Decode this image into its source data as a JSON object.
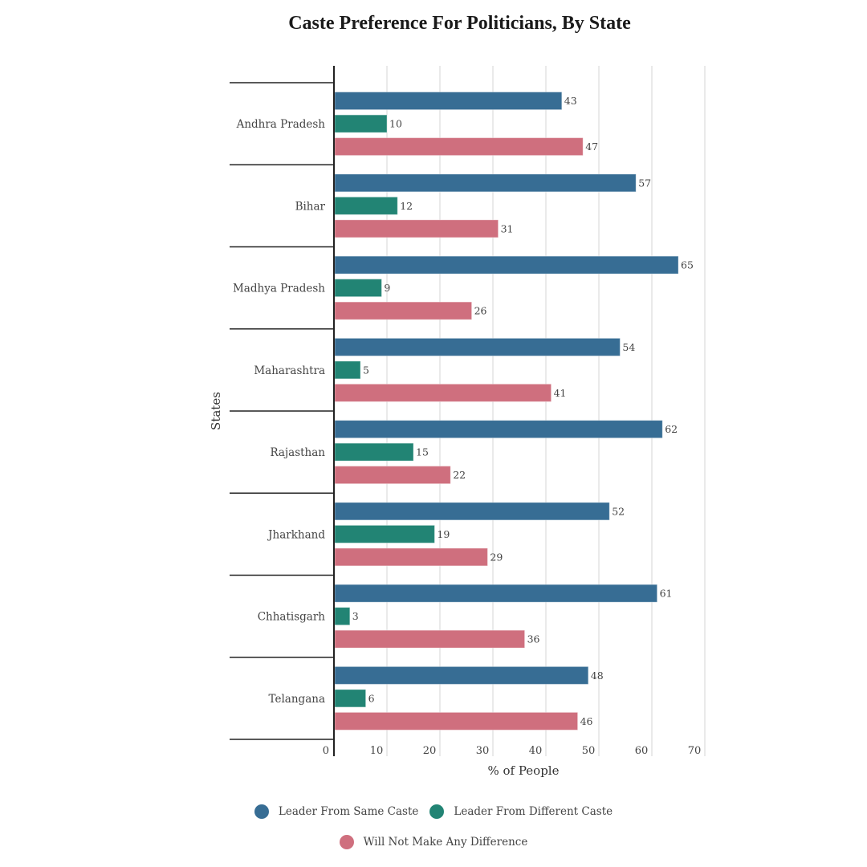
{
  "chart_data": {
    "type": "bar",
    "orientation": "horizontal",
    "title": "Caste Preference For Politicians, By State",
    "xlabel": "% of People",
    "ylabel": "States",
    "xlim": [
      0,
      70
    ],
    "xticks": [
      "0",
      "10",
      "20",
      "30",
      "40",
      "50",
      "60",
      "70"
    ],
    "grid": true,
    "legend_position": "bottom",
    "categories": [
      "Andhra Pradesh",
      "Bihar",
      "Madhya Pradesh",
      "Maharashtra",
      "Rajasthan",
      "Jharkhand",
      "Chhatisgarh",
      "Telangana"
    ],
    "series": [
      {
        "name": "Leader From Same Caste",
        "color": "#376d94",
        "values": [
          43,
          57,
          65,
          54,
          62,
          52,
          61,
          48
        ]
      },
      {
        "name": "Leader From Different Caste",
        "color": "#228474",
        "values": [
          10,
          12,
          9,
          5,
          15,
          19,
          3,
          6
        ]
      },
      {
        "name": "Will Not Make Any Difference",
        "color": "#cf6f7e",
        "values": [
          47,
          31,
          26,
          41,
          22,
          29,
          36,
          46
        ]
      }
    ]
  }
}
